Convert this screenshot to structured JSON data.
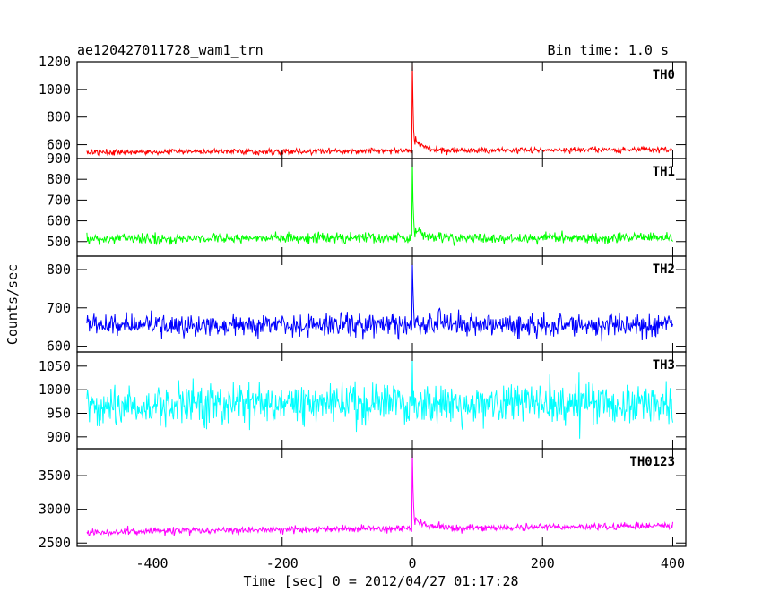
{
  "chart_data": {
    "type": "line",
    "title": "ae120427011728_wam1_trn",
    "bin_time": "Bin time: 1.0 s",
    "xlabel": "Time [sec] 0 = 2012/04/27 01:17:28",
    "ylabel": "Counts/sec",
    "xlim": [
      -515,
      420
    ],
    "x_ticks": [
      -400,
      -200,
      0,
      200,
      400
    ],
    "x_range": [
      -500,
      400
    ],
    "bin_seconds": 1.0,
    "grid": false,
    "panels": [
      {
        "name": "TH0",
        "color": "#ff0000",
        "ylim": [
          500,
          1200
        ],
        "y_ticks": [
          600,
          800,
          1000,
          1200
        ],
        "baseline_start": 545,
        "baseline_end": 565,
        "noise": 18,
        "peak_value": 1190,
        "post_peak_excess": 90
      },
      {
        "name": "TH1",
        "color": "#00ff00",
        "ylim": [
          430,
          900
        ],
        "y_ticks": [
          500,
          600,
          700,
          800,
          900
        ],
        "baseline_start": 515,
        "baseline_end": 518,
        "noise": 22,
        "peak_value": 890,
        "post_peak_excess": 45
      },
      {
        "name": "TH2",
        "color": "#0000ff",
        "ylim": [
          585,
          835
        ],
        "y_ticks": [
          600,
          700,
          800
        ],
        "baseline_start": 655,
        "baseline_end": 655,
        "noise": 26,
        "peak_value": 830,
        "post_peak_excess": 10
      },
      {
        "name": "TH3",
        "color": "#00ffff",
        "ylim": [
          875,
          1080
        ],
        "y_ticks": [
          900,
          950,
          1000,
          1050
        ],
        "baseline_start": 965,
        "baseline_end": 975,
        "noise": 38,
        "peak_value": 1010,
        "post_peak_excess": 0
      },
      {
        "name": "TH0123",
        "color": "#ff00ff",
        "ylim": [
          2450,
          3900
        ],
        "y_ticks": [
          2500,
          3000,
          3500
        ],
        "baseline_start": 2665,
        "baseline_end": 2760,
        "noise": 45,
        "peak_value": 3850,
        "post_peak_excess": 180
      }
    ]
  }
}
